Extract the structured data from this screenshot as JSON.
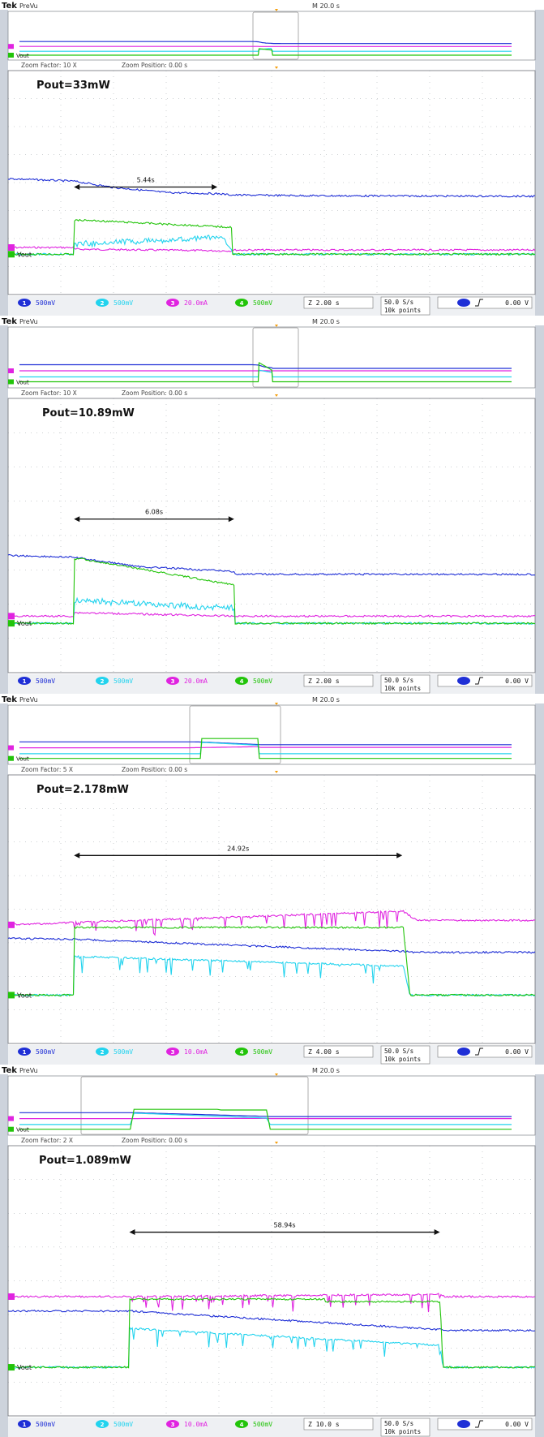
{
  "colors": {
    "ch1": "#1f2fd6",
    "ch2": "#22d3ee",
    "ch3": "#e024e0",
    "ch4": "#22c40a",
    "grid": "#9aa0a6",
    "frame": "#6b6f76",
    "bg_strip": "#cdd3dc"
  },
  "chart_data": [
    {
      "type": "line",
      "title": "Pout=33mW",
      "header_left": "PreVu",
      "brand": "Tek",
      "header_mid": "M 20.0 s",
      "zoom_factor": "Zoom Factor: 10 X",
      "zoom_position": "Zoom Position: 0.00 s",
      "ch_label": "Vout",
      "ch1_scale": "500mV",
      "ch2_scale": "500mV",
      "ch3_scale": "20.0mA",
      "ch4_scale": "500mV",
      "timebase": "Z 2.00 s",
      "sample_rate": "50.0 S/s",
      "record_length": "10k points",
      "trigger_level": "0.00 V",
      "measurement": {
        "label": "5.44s",
        "start_s": 2.5,
        "duration_s": 5.44
      },
      "x_range_s": [
        0,
        20
      ],
      "series": [
        {
          "channel": "1",
          "x": [
            0,
            2.5,
            4,
            6,
            8,
            8.5,
            12,
            20
          ],
          "y": [
            3.0,
            2.9,
            2.65,
            2.45,
            2.4,
            2.35,
            2.32,
            2.3
          ]
        },
        {
          "channel": "2",
          "x": [
            0,
            2.5,
            2.5,
            8.2,
            8.3,
            8.5,
            8.5,
            20
          ],
          "y": [
            0.0,
            0.0,
            0.6,
            1.0,
            0.55,
            0.2,
            0.0,
            0.0
          ]
        },
        {
          "channel": "3",
          "x": [
            0,
            2.5,
            2.5,
            8.5,
            8.5,
            20
          ],
          "y": [
            0.08,
            0.08,
            0.06,
            0.04,
            0.05,
            0.05
          ]
        },
        {
          "channel": "4",
          "x": [
            0,
            2.5,
            2.5,
            3.0,
            8.5,
            8.5,
            20
          ],
          "y": [
            0.0,
            0.0,
            2.2,
            2.2,
            1.75,
            0.0,
            0.0
          ]
        }
      ]
    },
    {
      "type": "line",
      "title": "Pout=10.89mW",
      "header_left": "PreVu",
      "brand": "Tek",
      "header_mid": "M 20.0 s",
      "zoom_factor": "Zoom Factor: 10 X",
      "zoom_position": "Zoom Position: 0.00 s",
      "ch_label": "Vout",
      "ch1_scale": "500mV",
      "ch2_scale": "500mV",
      "ch3_scale": "20.0mA",
      "ch4_scale": "500mV",
      "timebase": "Z 2.00 s",
      "sample_rate": "50.0 S/s",
      "record_length": "10k points",
      "trigger_level": "0.00 V",
      "measurement": {
        "label": "6.08s",
        "start_s": 2.5,
        "duration_s": 6.08
      },
      "x_range_s": [
        0,
        20
      ],
      "series": [
        {
          "channel": "1",
          "x": [
            0,
            2.5,
            5,
            8.6,
            8.6,
            20
          ],
          "y": [
            3.6,
            3.5,
            3.0,
            2.75,
            2.6,
            2.6
          ]
        },
        {
          "channel": "2",
          "x": [
            0,
            2.5,
            2.5,
            8.6,
            8.6,
            20
          ],
          "y": [
            0.0,
            0.0,
            1.85,
            1.2,
            0.0,
            0.0
          ]
        },
        {
          "channel": "3",
          "x": [
            0,
            2.5,
            2.5,
            8.6,
            8.6,
            20
          ],
          "y": [
            0.08,
            0.08,
            0.12,
            0.08,
            0.08,
            0.08
          ]
        },
        {
          "channel": "4",
          "x": [
            0,
            2.5,
            2.5,
            2.8,
            8.6,
            8.6,
            20
          ],
          "y": [
            0.0,
            0.0,
            5.2,
            5.2,
            3.1,
            0.0,
            0.0
          ]
        }
      ]
    },
    {
      "type": "line",
      "title": "Pout=2.178mW",
      "header_left": "PreVu",
      "brand": "Tek",
      "header_mid": "M 20.0 s",
      "zoom_factor": "Zoom Factor: 5 X",
      "zoom_position": "Zoom Position: 0.00 s",
      "ch_label": "Vout",
      "ch1_scale": "500mV",
      "ch2_scale": "500mV",
      "ch3_scale": "10.0mA",
      "ch4_scale": "500mV",
      "timebase": "Z 4.00 s",
      "sample_rate": "50.0 S/s",
      "record_length": "10k points",
      "trigger_level": "0.00 V",
      "measurement": {
        "label": "24.92s",
        "start_s": 5.0,
        "duration_s": 24.92
      },
      "x_range_s": [
        0,
        40
      ],
      "series": [
        {
          "channel": "1",
          "x": [
            0,
            5,
            30,
            31,
            40
          ],
          "y": [
            3.25,
            3.2,
            2.5,
            2.45,
            2.45
          ]
        },
        {
          "channel": "2",
          "x": [
            0,
            5,
            5,
            30,
            30.5,
            31,
            40
          ],
          "y": [
            0.0,
            0.0,
            3.2,
            2.4,
            0.0,
            0.0,
            0.0
          ]
        },
        {
          "channel": "3",
          "x": [
            0,
            5,
            30,
            31,
            40
          ],
          "y": [
            1.55,
            1.6,
            1.85,
            1.65,
            1.65
          ]
        },
        {
          "channel": "4",
          "x": [
            0,
            5,
            5,
            30,
            30.5,
            40
          ],
          "y": [
            0.0,
            0.0,
            5.6,
            5.6,
            0.0,
            0.0
          ]
        }
      ]
    },
    {
      "type": "line",
      "title": "Pout=1.089mW",
      "header_left": "PreVu",
      "brand": "Tek",
      "header_mid": "M 20.0 s",
      "zoom_factor": "Zoom Factor: 2 X",
      "zoom_position": "Zoom Position: 0.00 s",
      "ch_label": "Vout",
      "ch1_scale": "500mV",
      "ch2_scale": "500mV",
      "ch3_scale": "10.0mA",
      "ch4_scale": "500mV",
      "timebase": "Z 10.0 s",
      "sample_rate": "50.0 S/s",
      "record_length": "10k points",
      "trigger_level": "0.00 V",
      "measurement": {
        "label": "58.94s",
        "start_s": 23.0,
        "duration_s": 58.94
      },
      "x_range_s": [
        0,
        100
      ],
      "series": [
        {
          "channel": "1",
          "x": [
            0,
            23,
            82,
            82.5,
            100
          ],
          "y": [
            3.2,
            3.2,
            2.15,
            2.1,
            2.1
          ]
        },
        {
          "channel": "2",
          "x": [
            0,
            23,
            23,
            82,
            82.5,
            83,
            100
          ],
          "y": [
            0.0,
            0.0,
            3.2,
            1.8,
            0.0,
            0.0,
            0.0
          ]
        },
        {
          "channel": "3",
          "x": [
            0,
            23,
            82,
            83,
            100
          ],
          "y": [
            1.55,
            1.55,
            1.6,
            1.55,
            1.55
          ]
        },
        {
          "channel": "4",
          "x": [
            0,
            23,
            23,
            60,
            60,
            82,
            82.5,
            100
          ],
          "y": [
            0.0,
            0.0,
            5.6,
            5.6,
            5.4,
            5.4,
            0.0,
            0.0
          ]
        }
      ]
    }
  ]
}
